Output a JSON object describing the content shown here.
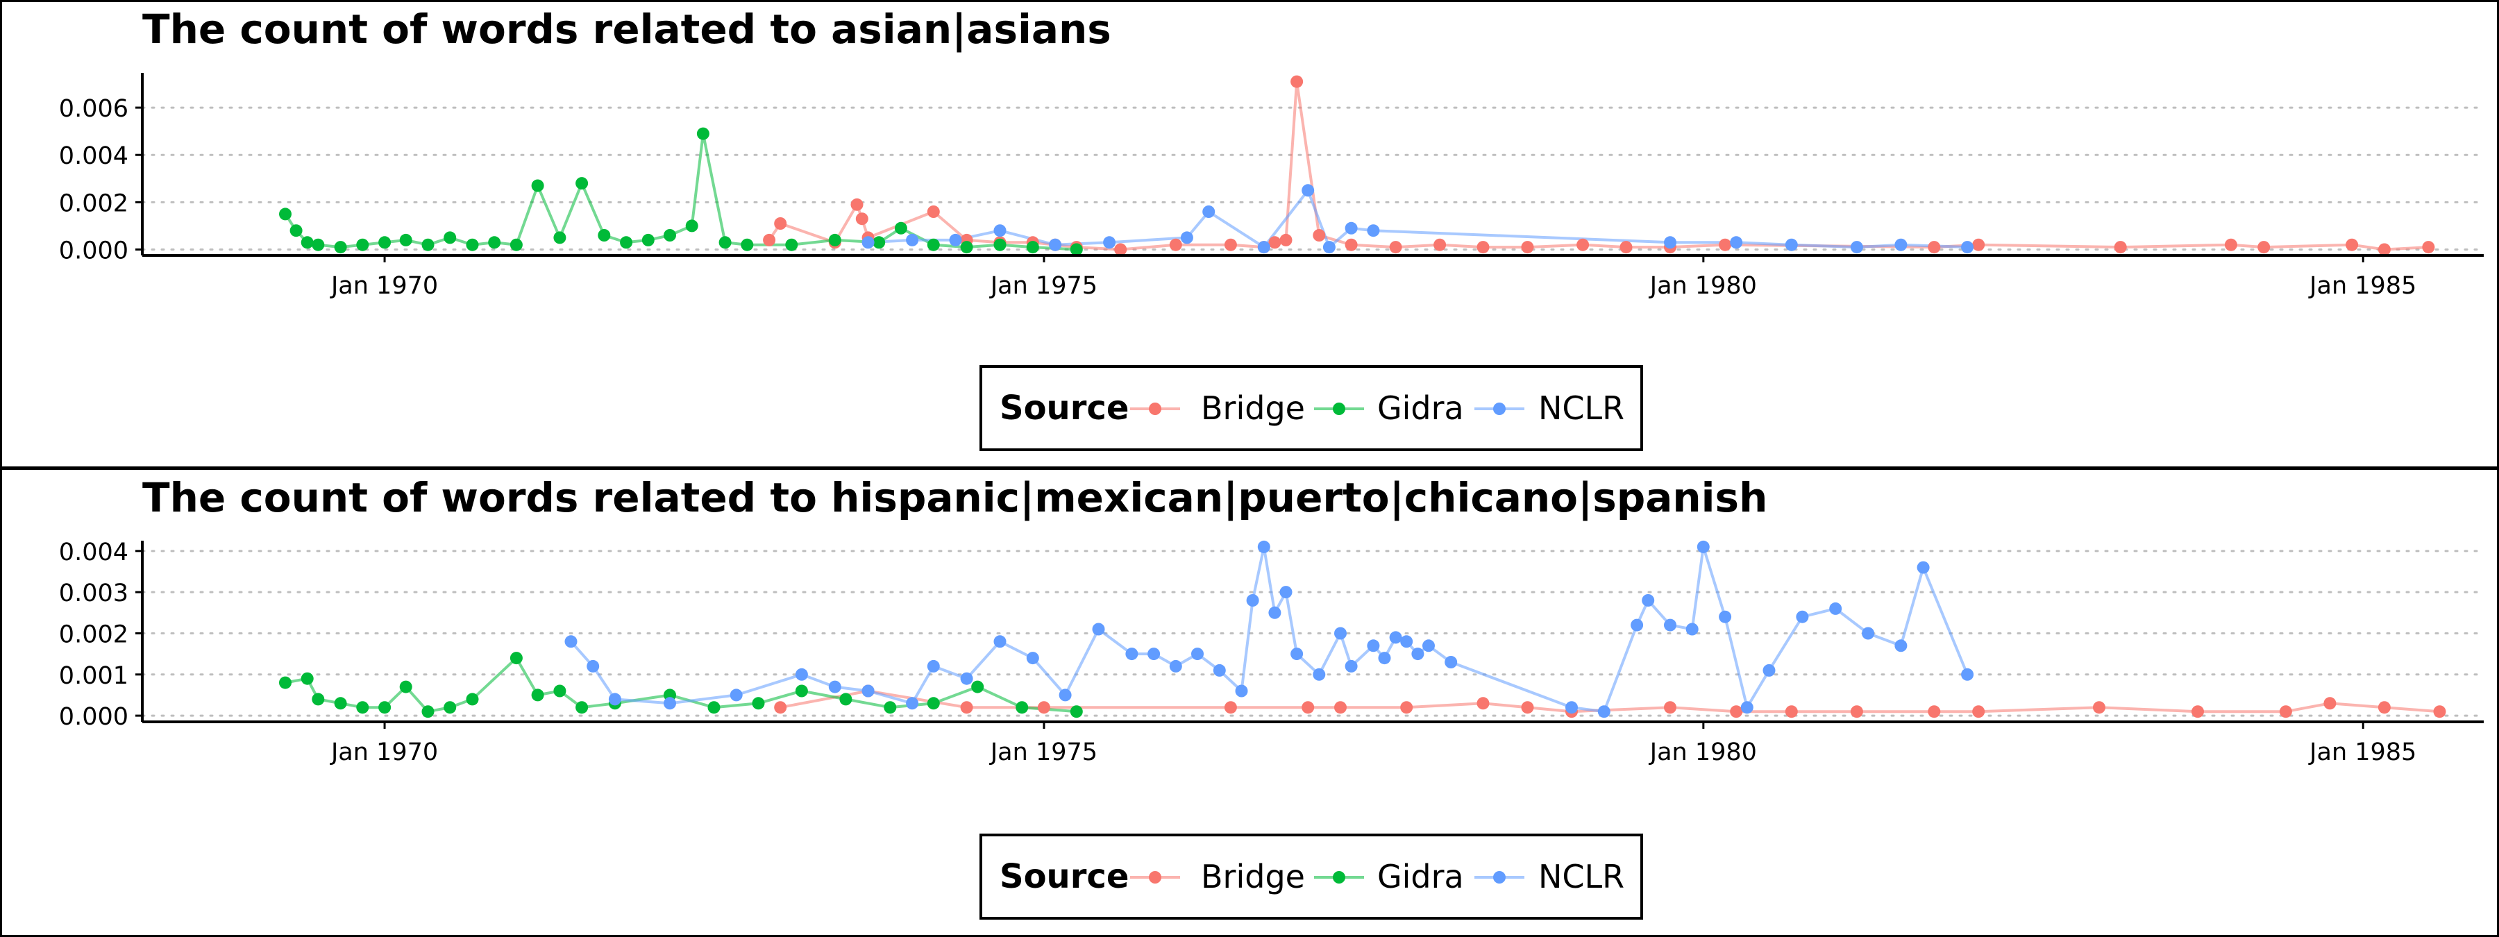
{
  "colors": {
    "Bridge": "#F8766D",
    "Gidra": "#00BA38",
    "NCLR": "#619CFF",
    "grid": "#BEBEBE",
    "frame": "#000000"
  },
  "chart_data": [
    {
      "type": "line",
      "title": "The count of words related to asian|asians",
      "xlabel": "",
      "ylabel": "",
      "xaxis_type": "date",
      "xlim": [
        "1968-03-01",
        "1985-12-01"
      ],
      "ylim": [
        -0.00025,
        0.00747
      ],
      "x_ticks": [
        {
          "date": "1970-01-01",
          "label": "Jan 1970"
        },
        {
          "date": "1975-01-01",
          "label": "Jan 1975"
        },
        {
          "date": "1980-01-01",
          "label": "Jan 1980"
        },
        {
          "date": "1985-01-01",
          "label": "Jan 1985"
        }
      ],
      "y_ticks": [
        {
          "value": 0,
          "label": "0.000"
        },
        {
          "value": 0.002,
          "label": "0.002"
        },
        {
          "value": 0.004,
          "label": "0.004"
        },
        {
          "value": 0.006,
          "label": "0.006"
        }
      ],
      "grid": "horizontal-dotted",
      "legend": {
        "title": "Source",
        "position": "bottom"
      },
      "series": [
        {
          "name": "Bridge",
          "points": [
            [
              "1972-12-01",
              0.0004
            ],
            [
              "1973-01-01",
              0.0011
            ],
            [
              "1973-06-01",
              0.0003
            ],
            [
              "1973-08-01",
              0.0019
            ],
            [
              "1973-08-15",
              0.0013
            ],
            [
              "1973-09-01",
              0.0005
            ],
            [
              "1974-03-01",
              0.0016
            ],
            [
              "1974-06-01",
              0.0004
            ],
            [
              "1974-09-01",
              0.0003
            ],
            [
              "1974-12-01",
              0.0003
            ],
            [
              "1975-02-01",
              0.0002
            ],
            [
              "1975-04-01",
              0.0001
            ],
            [
              "1975-08-01",
              0.0
            ],
            [
              "1976-01-01",
              0.0002
            ],
            [
              "1976-06-01",
              0.0002
            ],
            [
              "1976-09-01",
              0.0001
            ],
            [
              "1976-10-01",
              0.0003
            ],
            [
              "1976-11-01",
              0.0004
            ],
            [
              "1976-12-01",
              0.0071
            ],
            [
              "1977-02-01",
              0.0006
            ],
            [
              "1977-05-01",
              0.0002
            ],
            [
              "1977-09-01",
              0.0001
            ],
            [
              "1978-01-01",
              0.0002
            ],
            [
              "1978-05-01",
              0.0001
            ],
            [
              "1978-09-01",
              0.0001
            ],
            [
              "1979-02-01",
              0.0002
            ],
            [
              "1979-06-01",
              0.0001
            ],
            [
              "1979-10-01",
              0.0001
            ],
            [
              "1980-03-01",
              0.0002
            ],
            [
              "1981-10-01",
              0.0001
            ],
            [
              "1982-02-01",
              0.0002
            ],
            [
              "1983-03-01",
              0.0001
            ],
            [
              "1984-01-01",
              0.0002
            ],
            [
              "1984-04-01",
              0.0001
            ],
            [
              "1984-12-01",
              0.0002
            ],
            [
              "1985-03-01",
              0.0
            ],
            [
              "1985-07-01",
              0.0001
            ]
          ]
        },
        {
          "name": "Gidra",
          "points": [
            [
              "1969-04-01",
              0.0015
            ],
            [
              "1969-05-01",
              0.0008
            ],
            [
              "1969-06-01",
              0.0003
            ],
            [
              "1969-07-01",
              0.0002
            ],
            [
              "1969-09-01",
              0.0001
            ],
            [
              "1969-11-01",
              0.0002
            ],
            [
              "1970-01-01",
              0.0003
            ],
            [
              "1970-03-01",
              0.0004
            ],
            [
              "1970-05-01",
              0.0002
            ],
            [
              "1970-07-01",
              0.0005
            ],
            [
              "1970-09-01",
              0.0002
            ],
            [
              "1970-11-01",
              0.0003
            ],
            [
              "1971-01-01",
              0.0002
            ],
            [
              "1971-03-01",
              0.0027
            ],
            [
              "1971-05-01",
              0.0005
            ],
            [
              "1971-07-01",
              0.0028
            ],
            [
              "1971-09-01",
              0.0006
            ],
            [
              "1971-11-01",
              0.0003
            ],
            [
              "1972-01-01",
              0.0004
            ],
            [
              "1972-03-01",
              0.0006
            ],
            [
              "1972-05-01",
              0.001
            ],
            [
              "1972-06-01",
              0.0049
            ],
            [
              "1972-08-01",
              0.0003
            ],
            [
              "1972-10-01",
              0.0002
            ],
            [
              "1973-02-01",
              0.0002
            ],
            [
              "1973-06-01",
              0.0004
            ],
            [
              "1973-10-01",
              0.0003
            ],
            [
              "1973-12-01",
              0.0009
            ],
            [
              "1974-03-01",
              0.0002
            ],
            [
              "1974-06-01",
              0.0001
            ],
            [
              "1974-09-01",
              0.0002
            ],
            [
              "1974-12-01",
              0.0001
            ],
            [
              "1975-04-01",
              0.0
            ]
          ]
        },
        {
          "name": "NCLR",
          "points": [
            [
              "1973-09-01",
              0.0003
            ],
            [
              "1974-01-01",
              0.0004
            ],
            [
              "1974-05-01",
              0.0004
            ],
            [
              "1974-09-01",
              0.0008
            ],
            [
              "1975-02-01",
              0.0002
            ],
            [
              "1975-07-01",
              0.0003
            ],
            [
              "1976-02-01",
              0.0005
            ],
            [
              "1976-04-01",
              0.0016
            ],
            [
              "1976-09-01",
              0.0001
            ],
            [
              "1977-01-01",
              0.0025
            ],
            [
              "1977-03-01",
              0.0001
            ],
            [
              "1977-05-01",
              0.0009
            ],
            [
              "1977-07-01",
              0.0008
            ],
            [
              "1979-10-01",
              0.0003
            ],
            [
              "1980-04-01",
              0.0003
            ],
            [
              "1980-09-01",
              0.0002
            ],
            [
              "1981-03-01",
              0.0001
            ],
            [
              "1981-07-01",
              0.0002
            ],
            [
              "1982-01-01",
              0.0001
            ]
          ]
        }
      ]
    },
    {
      "type": "line",
      "title": "The count of words related to hispanic|mexican|puerto|chicano|spanish",
      "xlabel": "",
      "ylabel": "",
      "xaxis_type": "date",
      "xlim": [
        "1968-03-01",
        "1985-12-01"
      ],
      "ylim": [
        -0.00015,
        0.00425
      ],
      "x_ticks": [
        {
          "date": "1970-01-01",
          "label": "Jan 1970"
        },
        {
          "date": "1975-01-01",
          "label": "Jan 1975"
        },
        {
          "date": "1980-01-01",
          "label": "Jan 1980"
        },
        {
          "date": "1985-01-01",
          "label": "Jan 1985"
        }
      ],
      "y_ticks": [
        {
          "value": 0,
          "label": "0.000"
        },
        {
          "value": 0.001,
          "label": "0.001"
        },
        {
          "value": 0.002,
          "label": "0.002"
        },
        {
          "value": 0.003,
          "label": "0.003"
        },
        {
          "value": 0.004,
          "label": "0.004"
        }
      ],
      "grid": "horizontal-dotted",
      "legend": {
        "title": "Source",
        "position": "bottom"
      },
      "series": [
        {
          "name": "Bridge",
          "points": [
            [
              "1973-01-01",
              0.0002
            ],
            [
              "1973-09-01",
              0.0006
            ],
            [
              "1974-06-01",
              0.0002
            ],
            [
              "1975-01-01",
              0.0002
            ],
            [
              "1976-06-01",
              0.0002
            ],
            [
              "1977-01-01",
              0.0002
            ],
            [
              "1977-04-01",
              0.0002
            ],
            [
              "1977-10-01",
              0.0002
            ],
            [
              "1978-05-01",
              0.0003
            ],
            [
              "1978-09-01",
              0.0002
            ],
            [
              "1979-01-01",
              0.0001
            ],
            [
              "1979-10-01",
              0.0002
            ],
            [
              "1980-04-01",
              0.0001
            ],
            [
              "1980-09-01",
              0.0001
            ],
            [
              "1981-03-01",
              0.0001
            ],
            [
              "1981-10-01",
              0.0001
            ],
            [
              "1982-02-01",
              0.0001
            ],
            [
              "1983-01-01",
              0.0002
            ],
            [
              "1983-10-01",
              0.0001
            ],
            [
              "1984-06-01",
              0.0001
            ],
            [
              "1984-10-01",
              0.0003
            ],
            [
              "1985-03-01",
              0.0002
            ],
            [
              "1985-08-01",
              0.0001
            ]
          ]
        },
        {
          "name": "Gidra",
          "points": [
            [
              "1969-04-01",
              0.0008
            ],
            [
              "1969-06-01",
              0.0009
            ],
            [
              "1969-07-01",
              0.0004
            ],
            [
              "1969-09-01",
              0.0003
            ],
            [
              "1969-11-01",
              0.0002
            ],
            [
              "1970-01-01",
              0.0002
            ],
            [
              "1970-03-01",
              0.0007
            ],
            [
              "1970-05-01",
              0.0001
            ],
            [
              "1970-07-01",
              0.0002
            ],
            [
              "1970-09-01",
              0.0004
            ],
            [
              "1971-01-01",
              0.0014
            ],
            [
              "1971-03-01",
              0.0005
            ],
            [
              "1971-05-01",
              0.0006
            ],
            [
              "1971-07-01",
              0.0002
            ],
            [
              "1971-10-01",
              0.0003
            ],
            [
              "1972-03-01",
              0.0005
            ],
            [
              "1972-07-01",
              0.0002
            ],
            [
              "1972-11-01",
              0.0003
            ],
            [
              "1973-03-01",
              0.0006
            ],
            [
              "1973-07-01",
              0.0004
            ],
            [
              "1973-11-01",
              0.0002
            ],
            [
              "1974-03-01",
              0.0003
            ],
            [
              "1974-07-01",
              0.0007
            ],
            [
              "1974-11-01",
              0.0002
            ],
            [
              "1975-04-01",
              0.0001
            ]
          ]
        },
        {
          "name": "NCLR",
          "points": [
            [
              "1971-06-01",
              0.0018
            ],
            [
              "1971-08-01",
              0.0012
            ],
            [
              "1971-10-01",
              0.0004
            ],
            [
              "1972-03-01",
              0.0003
            ],
            [
              "1972-09-01",
              0.0005
            ],
            [
              "1973-03-01",
              0.001
            ],
            [
              "1973-06-01",
              0.0007
            ],
            [
              "1973-09-01",
              0.0006
            ],
            [
              "1974-01-01",
              0.0003
            ],
            [
              "1974-03-01",
              0.0012
            ],
            [
              "1974-06-01",
              0.0009
            ],
            [
              "1974-09-01",
              0.0018
            ],
            [
              "1974-12-01",
              0.0014
            ],
            [
              "1975-03-01",
              0.0005
            ],
            [
              "1975-06-01",
              0.0021
            ],
            [
              "1975-09-01",
              0.0015
            ],
            [
              "1975-11-01",
              0.0015
            ],
            [
              "1976-01-01",
              0.0012
            ],
            [
              "1976-03-01",
              0.0015
            ],
            [
              "1976-05-01",
              0.0011
            ],
            [
              "1976-07-01",
              0.0006
            ],
            [
              "1976-08-01",
              0.0028
            ],
            [
              "1976-09-01",
              0.0041
            ],
            [
              "1976-10-01",
              0.0025
            ],
            [
              "1976-11-01",
              0.003
            ],
            [
              "1976-12-01",
              0.0015
            ],
            [
              "1977-02-01",
              0.001
            ],
            [
              "1977-04-01",
              0.002
            ],
            [
              "1977-05-01",
              0.0012
            ],
            [
              "1977-07-01",
              0.0017
            ],
            [
              "1977-08-01",
              0.0014
            ],
            [
              "1977-09-01",
              0.0019
            ],
            [
              "1977-10-01",
              0.0018
            ],
            [
              "1977-11-01",
              0.0015
            ],
            [
              "1977-12-01",
              0.0017
            ],
            [
              "1978-02-01",
              0.0013
            ],
            [
              "1979-01-01",
              0.0002
            ],
            [
              "1979-04-01",
              0.0001
            ],
            [
              "1979-07-01",
              0.0022
            ],
            [
              "1979-08-01",
              0.0028
            ],
            [
              "1979-10-01",
              0.0022
            ],
            [
              "1979-12-01",
              0.0021
            ],
            [
              "1980-01-01",
              0.0041
            ],
            [
              "1980-03-01",
              0.0024
            ],
            [
              "1980-05-01",
              0.0002
            ],
            [
              "1980-07-01",
              0.0011
            ],
            [
              "1980-10-01",
              0.0024
            ],
            [
              "1981-01-01",
              0.0026
            ],
            [
              "1981-04-01",
              0.002
            ],
            [
              "1981-07-01",
              0.0017
            ],
            [
              "1981-09-01",
              0.0036
            ],
            [
              "1982-01-01",
              0.001
            ]
          ]
        }
      ]
    }
  ]
}
